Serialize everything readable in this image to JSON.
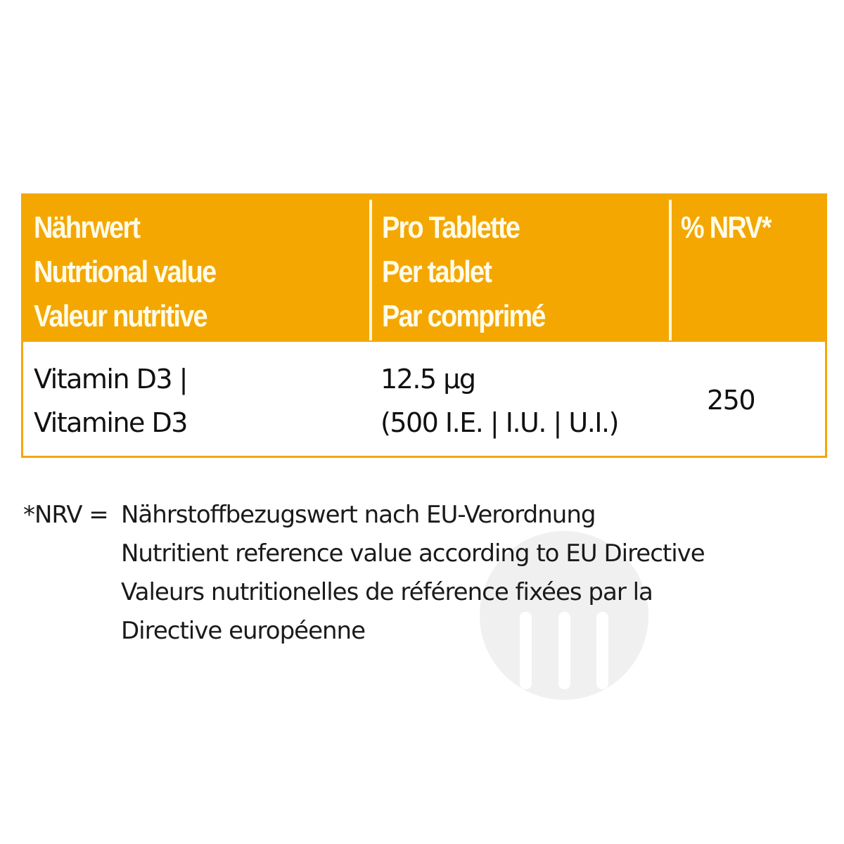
{
  "colors": {
    "accent": "#f4a700",
    "header_text": "#fffbe8",
    "body_text": "#111111"
  },
  "table": {
    "headers": [
      {
        "lines": [
          "Nährwert",
          "Nutrtional value",
          "Valeur nutritive"
        ]
      },
      {
        "lines": [
          "Pro Tablette",
          "Per tablet",
          "Par comprimé"
        ]
      },
      {
        "lines": [
          "% NRV*"
        ]
      }
    ],
    "rows": [
      {
        "nutrient": [
          "Vitamin D3  |",
          "Vitamine D3"
        ],
        "amount": [
          "12.5 µg",
          "(500 I.E. | I.U. | U.I.)"
        ],
        "nrv": "250"
      }
    ]
  },
  "footnote": {
    "marker": "*NRV =",
    "lines": [
      "Nährstoffbezugswert nach EU-Verordnung",
      "Nutritient reference value according to EU Directive",
      "Valeurs nutritionelles de référence fixées par la",
      "Directive européenne"
    ]
  }
}
